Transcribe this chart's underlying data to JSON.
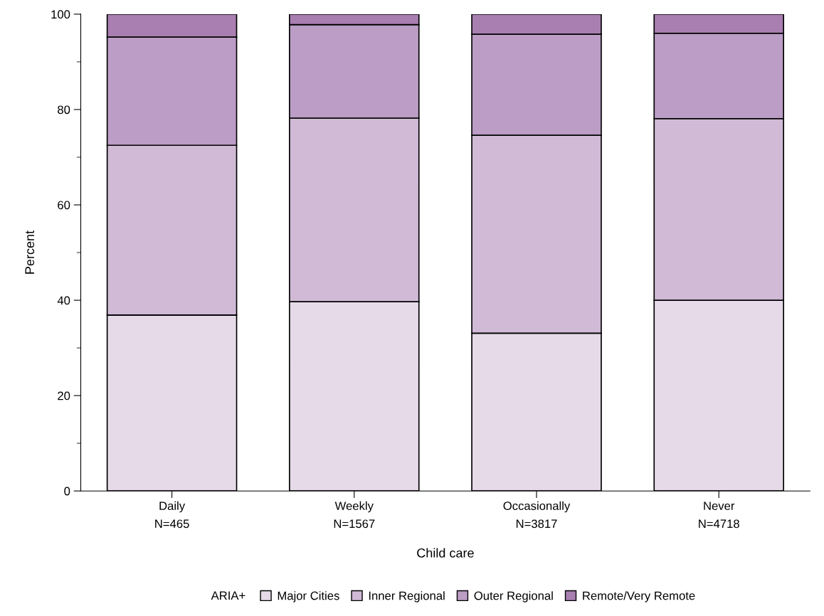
{
  "chart_data": {
    "type": "bar",
    "stacked": true,
    "xlabel": "Child care",
    "ylabel": "Percent",
    "legend_title": "ARIA+",
    "legend": "bottom",
    "grid": false,
    "categories": [
      "Daily\nN=465",
      "Weekly\nN=1567",
      "Occasionally\nN=3817",
      "Never\nN=4718"
    ],
    "series": [
      {
        "name": "Major Cities",
        "color": "#e6dae8",
        "values": [
          36.9,
          39.7,
          33.1,
          40.0
        ]
      },
      {
        "name": "Inner Regional",
        "color": "#d0bad6",
        "values": [
          35.6,
          38.5,
          41.5,
          38.1
        ]
      },
      {
        "name": "Outer Regional",
        "color": "#bb9dc5",
        "values": [
          22.7,
          19.6,
          21.2,
          17.9
        ]
      },
      {
        "name": "Remote/Very Remote",
        "color": "#a87fb0",
        "values": [
          4.8,
          2.2,
          4.2,
          4.0
        ]
      }
    ],
    "ylim": [
      0,
      100
    ],
    "yticks": [
      0,
      {
        "value": 10,
        "label": null
      },
      20,
      {
        "value": 30,
        "label": null
      },
      40,
      {
        "value": 50,
        "label": null
      },
      60,
      {
        "value": 70,
        "label": null
      },
      80,
      {
        "value": 90,
        "label": null
      },
      100
    ]
  }
}
